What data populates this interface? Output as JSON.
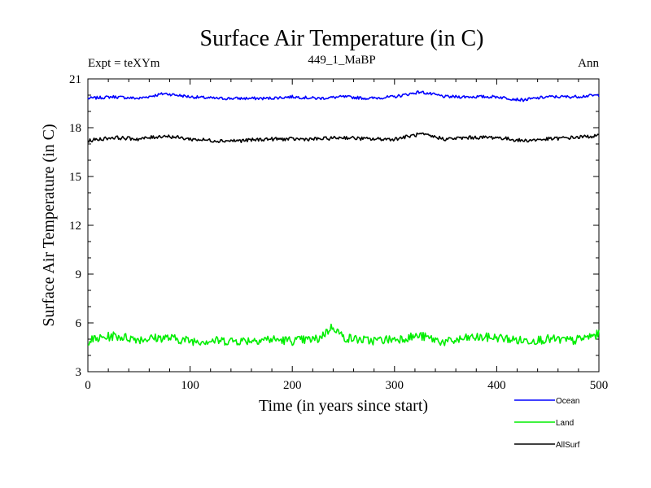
{
  "chart_data": {
    "type": "line",
    "title": "Surface Air Temperature (in C)",
    "subtitle_left": "Expt = teXYm",
    "subtitle_center": "449_1_MaBP",
    "subtitle_right": "Ann",
    "xlabel": "Time (in years since start)",
    "ylabel": "Surface Air Temperature (in C)",
    "xlim": [
      0,
      500
    ],
    "ylim": [
      3,
      21
    ],
    "xticks": [
      0,
      100,
      200,
      300,
      400,
      500
    ],
    "yticks": [
      3,
      6,
      9,
      12,
      15,
      18,
      21
    ],
    "grid": false,
    "legend_position": "bottom-right, outside plot",
    "series": [
      {
        "name": "Ocean",
        "color": "#0000ff",
        "x": [
          0,
          25,
          50,
          75,
          100,
          125,
          150,
          175,
          200,
          225,
          250,
          275,
          300,
          325,
          350,
          375,
          400,
          425,
          450,
          475,
          500
        ],
        "y": [
          19.8,
          19.9,
          19.8,
          20.1,
          19.9,
          19.8,
          19.8,
          19.8,
          19.9,
          19.8,
          19.9,
          19.8,
          19.9,
          20.2,
          19.9,
          19.9,
          19.9,
          19.7,
          19.9,
          19.9,
          20.0
        ]
      },
      {
        "name": "Land",
        "color": "#00ee00",
        "x": [
          0,
          25,
          50,
          75,
          100,
          125,
          150,
          175,
          200,
          225,
          240,
          250,
          275,
          300,
          325,
          350,
          375,
          400,
          425,
          450,
          475,
          500
        ],
        "y": [
          4.9,
          5.2,
          5.0,
          5.1,
          4.9,
          4.9,
          4.9,
          5.0,
          4.9,
          5.0,
          5.8,
          5.1,
          4.9,
          5.0,
          5.2,
          4.8,
          5.1,
          5.1,
          4.9,
          5.0,
          4.9,
          5.3
        ]
      },
      {
        "name": "AllSurf",
        "color": "#000000",
        "x": [
          0,
          25,
          50,
          75,
          100,
          125,
          150,
          175,
          200,
          225,
          250,
          275,
          300,
          325,
          350,
          375,
          400,
          425,
          450,
          475,
          500
        ],
        "y": [
          17.2,
          17.4,
          17.3,
          17.5,
          17.3,
          17.2,
          17.2,
          17.3,
          17.3,
          17.3,
          17.4,
          17.3,
          17.3,
          17.6,
          17.3,
          17.4,
          17.4,
          17.2,
          17.3,
          17.4,
          17.5
        ]
      }
    ]
  }
}
